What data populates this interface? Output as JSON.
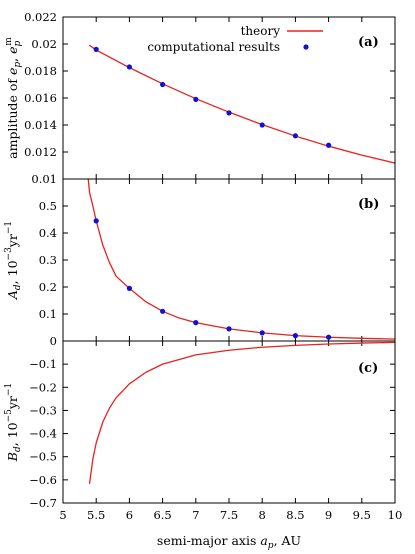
{
  "chart_data": [
    {
      "type": "line",
      "panel_label": "(a)",
      "ylabel": "amplitude of e_p, e_p^m",
      "ylim": [
        0.01,
        0.022
      ],
      "yticks": [
        0.01,
        0.012,
        0.014,
        0.016,
        0.018,
        0.02,
        0.022
      ],
      "ytick_labels": [
        "0.01",
        "0.012",
        "0.014",
        "0.016",
        "0.018",
        "0.02",
        "0.022"
      ],
      "xlim": [
        5,
        10
      ],
      "legend": {
        "position": "top-center",
        "entries": [
          "theory",
          "computational results"
        ]
      },
      "series": [
        {
          "name": "theory",
          "kind": "line",
          "color": "#e8211f",
          "x": [
            5.4,
            5.5,
            6,
            6.5,
            7,
            7.5,
            8,
            8.5,
            9,
            9.5,
            10
          ],
          "y": [
            0.0199,
            0.01955,
            0.01825,
            0.01705,
            0.01595,
            0.01495,
            0.01403,
            0.01318,
            0.01243,
            0.01177,
            0.01118
          ]
        },
        {
          "name": "computational results",
          "kind": "scatter",
          "color": "#1010dd",
          "x": [
            5.5,
            6,
            6.5,
            7,
            7.5,
            8,
            8.5,
            9
          ],
          "y": [
            0.0196,
            0.0183,
            0.017,
            0.0159,
            0.0149,
            0.014,
            0.0132,
            0.0125
          ]
        }
      ]
    },
    {
      "type": "line",
      "panel_label": "(b)",
      "ylabel": "A_d, 10^-3 yr^-1",
      "ylim": [
        0,
        0.6
      ],
      "yticks": [
        0,
        0.1,
        0.2,
        0.3,
        0.4,
        0.5
      ],
      "ytick_labels": [
        "0",
        "0.1",
        "0.2",
        "0.3",
        "0.4",
        "0.5"
      ],
      "xlim": [
        5,
        10
      ],
      "series": [
        {
          "kind": "line",
          "color": "#e8211f",
          "x": [
            5.38,
            5.4,
            5.45,
            5.5,
            5.6,
            5.7,
            5.8,
            6,
            6.25,
            6.5,
            6.75,
            7,
            7.5,
            8,
            8.5,
            9,
            9.5,
            10
          ],
          "y": [
            0.6,
            0.55,
            0.5,
            0.445,
            0.355,
            0.29,
            0.24,
            0.195,
            0.145,
            0.11,
            0.085,
            0.068,
            0.045,
            0.03,
            0.02,
            0.014,
            0.01,
            0.007
          ]
        },
        {
          "kind": "scatter",
          "color": "#1010dd",
          "x": [
            5.5,
            6,
            6.5,
            7,
            7.5,
            8,
            8.5,
            9
          ],
          "y": [
            0.445,
            0.195,
            0.11,
            0.068,
            0.045,
            0.03,
            0.02,
            0.014
          ]
        }
      ]
    },
    {
      "type": "line",
      "panel_label": "(c)",
      "ylabel": "B_d, 10^-5 yr^-1",
      "xlabel": "semi-major axis a_p, AU",
      "ylim": [
        -0.7,
        0
      ],
      "yticks": [
        -0.7,
        -0.6,
        -0.5,
        -0.4,
        -0.3,
        -0.2,
        -0.1
      ],
      "ytick_labels": [
        "−0.7",
        "−0.6",
        "−0.5",
        "−0.4",
        "−0.3",
        "−0.2",
        "−0.1"
      ],
      "xlim": [
        5,
        10
      ],
      "xticks": [
        5,
        5.5,
        6,
        6.5,
        7,
        7.5,
        8,
        8.5,
        9,
        9.5,
        10
      ],
      "xtick_labels": [
        "5",
        "5.5",
        "6",
        "6.5",
        "7",
        "7.5",
        "8",
        "8.5",
        "9",
        "9.5",
        "10"
      ],
      "series": [
        {
          "kind": "line",
          "color": "#e8211f",
          "x": [
            5.4,
            5.45,
            5.5,
            5.6,
            5.7,
            5.8,
            6,
            6.25,
            6.5,
            7,
            7.5,
            8,
            8.5,
            9,
            9.5,
            10
          ],
          "y": [
            -0.615,
            -0.51,
            -0.44,
            -0.35,
            -0.29,
            -0.245,
            -0.185,
            -0.135,
            -0.1,
            -0.06,
            -0.04,
            -0.027,
            -0.019,
            -0.013,
            -0.009,
            -0.006
          ]
        }
      ]
    }
  ]
}
